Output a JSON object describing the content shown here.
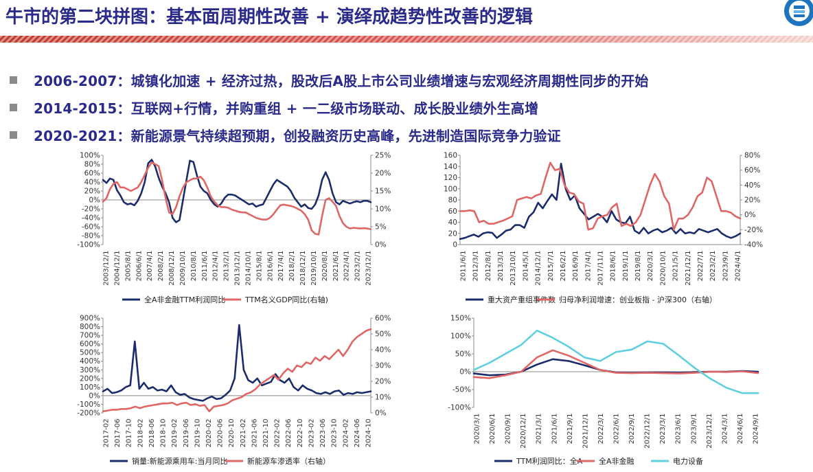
{
  "title": "牛市的第二块拼图：基本面周期性改善 + 演绎成趋势性改善的逻辑",
  "bullets": [
    "2006-2007：城镇化加速 + 经济过热，股改后A股上市公司业绩增速与宏观经济周期性同步的开始",
    "2014-2015：互联网+行情，并购重组 + 一二级市场联动、成长股业绩外生高增",
    "2020-2021：新能源景气持续超预期，创投融资历史高峰，先进制造国际竞争力验证"
  ],
  "colors": {
    "title": "#2a2a8a",
    "navy": "#1a2c6b",
    "red": "#e06666",
    "cyan": "#5fcfe0",
    "band": "#c0392b"
  },
  "chart_data": [
    {
      "type": "line",
      "x_ticks": [
        "2003/12/1",
        "2004/12/1",
        "2005/8/1",
        "2006/6/1",
        "2007/4/1",
        "2008/2/1",
        "2008/12/1",
        "2009/10/1",
        "2010/8/1",
        "2011/6/1",
        "2012/4/1",
        "2013/2/1",
        "2013/12/1",
        "2014/10/1",
        "2015/8/1",
        "2016/6/1",
        "2017/4/1",
        "2018/2/1",
        "2018/12/1",
        "2019/10/1",
        "2020/8/1",
        "2021/6/1",
        "2022/4/1",
        "2023/2/1",
        "2023/12/1"
      ],
      "y_left_ticks": [
        "100%",
        "80%",
        "60%",
        "40%",
        "20%",
        "0%",
        "-20%",
        "-40%",
        "-60%",
        "-80%",
        "-100%"
      ],
      "y_left_range": [
        -100,
        100
      ],
      "y_right_ticks": [
        "25%",
        "20%",
        "15%",
        "10%",
        "5%",
        "0%"
      ],
      "y_right_range": [
        0,
        25
      ],
      "series": [
        {
          "name": "全A非金融TTM利润同比",
          "axis": "left",
          "color": "#1a2c6b",
          "values": [
            45,
            38,
            48,
            45,
            22,
            10,
            -5,
            -10,
            -8,
            -12,
            -2,
            15,
            40,
            82,
            90,
            75,
            50,
            30,
            15,
            -5,
            -40,
            -50,
            -45,
            0,
            45,
            88,
            85,
            55,
            30,
            20,
            15,
            0,
            -10,
            -15,
            -8,
            5,
            12,
            12,
            10,
            5,
            0,
            -5,
            -10,
            -8,
            -15,
            -12,
            -10,
            5,
            20,
            35,
            45,
            40,
            35,
            30,
            20,
            5,
            -5,
            -15,
            -10,
            -18,
            -20,
            -10,
            10,
            45,
            62,
            45,
            15,
            -5,
            -10,
            -2,
            -5,
            -8,
            -5,
            -3,
            -5,
            -2,
            -2,
            -5
          ]
        },
        {
          "name": "TTM名义GDP同比(右轴)",
          "axis": "right",
          "color": "#e06666",
          "values": [
            12,
            13,
            15.5,
            17,
            17.5,
            16,
            16,
            15.5,
            15,
            15.5,
            16,
            17.5,
            19.5,
            21.5,
            23,
            22.5,
            22,
            18,
            13,
            9,
            8.5,
            10.5,
            13.5,
            16,
            17.5,
            18,
            18.5,
            18.5,
            19,
            18,
            16,
            13.5,
            12,
            11,
            10.5,
            10.5,
            10.3,
            9.8,
            9.5,
            9.2,
            9,
            9,
            8.5,
            8,
            7.5,
            7.2,
            7,
            7,
            7.5,
            8.5,
            9.8,
            11,
            11.2,
            11,
            10.8,
            10.5,
            10,
            9.5,
            8.5,
            7,
            4,
            3,
            2.8,
            8,
            12.5,
            13,
            12,
            10.8,
            8,
            6,
            5,
            4.5,
            4.7,
            4.6,
            4.5,
            4.6,
            4.5,
            4.3
          ]
        }
      ]
    },
    {
      "type": "line",
      "x_ticks": [
        "2011/6/1",
        "2012/3/1",
        "2012/8/1",
        "2013/3/1",
        "2013/10/1",
        "2014/5/1",
        "2014/12/1",
        "2015/7/1",
        "2016/2/1",
        "2016/9/1",
        "2017/4/1",
        "2017/11/1",
        "2018/6/1",
        "2019/1/1",
        "2019/8/1",
        "2020/3/1",
        "2020/10/1",
        "2021/5/1",
        "2021/12/1",
        "2022/7/1",
        "2023/2/1",
        "2023/9/1",
        "2024/4/1"
      ],
      "y_left_ticks": [
        "160",
        "140",
        "120",
        "100",
        "80",
        "60",
        "40",
        "20",
        "0"
      ],
      "y_left_range": [
        0,
        160
      ],
      "y_right_ticks": [
        "80%",
        "60%",
        "40%",
        "20%",
        "0%",
        "-20%",
        "-40%"
      ],
      "y_right_range": [
        -40,
        80
      ],
      "series": [
        {
          "name": "重大资产重组事件数",
          "axis": "left",
          "color": "#1a2c6b",
          "values": [
            10,
            12,
            15,
            18,
            14,
            20,
            22,
            21,
            12,
            18,
            25,
            27,
            35,
            35,
            30,
            50,
            58,
            75,
            65,
            78,
            90,
            80,
            145,
            100,
            80,
            88,
            65,
            55,
            45,
            50,
            55,
            50,
            40,
            60,
            45,
            40,
            38,
            50,
            25,
            20,
            30,
            20,
            25,
            28,
            22,
            25,
            30,
            20,
            28,
            20,
            22,
            20,
            28,
            25,
            22,
            25,
            28,
            20,
            15,
            12,
            15,
            20
          ]
        },
        {
          "name": "归母净利润增速：创业板指 - 沪深300（右轴）",
          "axis": "right",
          "color": "#e06666",
          "values": [
            5,
            5,
            6,
            5,
            -10,
            -8,
            -12,
            -12,
            -10,
            -8,
            -5,
            -2,
            20,
            22,
            24,
            22,
            26,
            28,
            50,
            70,
            60,
            62,
            40,
            30,
            28,
            18,
            15,
            -20,
            -18,
            -5,
            -2,
            0,
            10,
            15,
            -15,
            -12,
            -15,
            -10,
            0,
            20,
            40,
            55,
            45,
            25,
            15,
            -20,
            -5,
            -5,
            0,
            10,
            25,
            30,
            50,
            45,
            25,
            5,
            5,
            3,
            -2,
            -5
          ]
        }
      ]
    },
    {
      "type": "line",
      "x_ticks": [
        "2017-02",
        "2017-06",
        "2017-10",
        "2018-02",
        "2018-06",
        "2018-10",
        "2019-02",
        "2019-06",
        "2019-10",
        "2020-02",
        "2020-06",
        "2020-10",
        "2021-02",
        "2021-06",
        "2021-10",
        "2022-02",
        "2022-06",
        "2022-10",
        "2023-02",
        "2023-06",
        "2023-10",
        "2024-02",
        "2024-06",
        "2024-10"
      ],
      "y_left_ticks": [
        "900%",
        "800%",
        "700%",
        "600%",
        "500%",
        "400%",
        "300%",
        "200%",
        "100%",
        "0%",
        "-100%",
        "-200%"
      ],
      "y_left_range": [
        -200,
        900
      ],
      "y_right_ticks": [
        "60%",
        "50%",
        "40%",
        "30%",
        "20%",
        "10%",
        "0%"
      ],
      "y_right_range": [
        0,
        60
      ],
      "series": [
        {
          "name": "销量:新能源乘用车:当月同比",
          "axis": "left",
          "color": "#1a2c6b",
          "values": [
            50,
            80,
            30,
            40,
            60,
            100,
            120,
            630,
            80,
            150,
            80,
            100,
            60,
            70,
            50,
            120,
            40,
            10,
            20,
            -20,
            -40,
            -50,
            -60,
            -30,
            -10,
            -40,
            -30,
            10,
            60,
            200,
            820,
            300,
            180,
            150,
            200,
            120,
            140,
            160,
            250,
            180,
            150,
            200,
            100,
            60,
            120,
            80,
            60,
            30,
            20,
            40,
            20,
            50,
            60,
            10,
            30,
            20,
            40,
            30,
            40,
            50
          ]
        },
        {
          "name": "新能源车渗透率（右轴）",
          "axis": "right",
          "color": "#e06666",
          "values": [
            1,
            1.5,
            2,
            2,
            2.5,
            2.5,
            3,
            4,
            3,
            4,
            4.5,
            5,
            5.5,
            6,
            6,
            6.5,
            5,
            6,
            6.5,
            5,
            5.5,
            4.5,
            5,
            1,
            4,
            4.5,
            5,
            6,
            8,
            9,
            10,
            12,
            13,
            15,
            18,
            20,
            22,
            24,
            21,
            25,
            28,
            26,
            30,
            29,
            32,
            31,
            35,
            33,
            36,
            34,
            37,
            40,
            36,
            40,
            45,
            48,
            50,
            52,
            53
          ]
        }
      ]
    },
    {
      "type": "line",
      "x_ticks": [
        "2020/3/1",
        "2020/6/1",
        "2020/9/1",
        "2020/12/1",
        "2021/3/1",
        "2021/6/1",
        "2021/9/1",
        "2021/12/1",
        "2022/3/1",
        "2022/6/1",
        "2022/9/1",
        "2022/12/1",
        "2023/3/1",
        "2023/6/1",
        "2023/9/1",
        "2023/12/1",
        "2024/3/1",
        "2024/6/1",
        "2024/9/1"
      ],
      "y_left_ticks": [
        "150%",
        "100%",
        "50%",
        "0%",
        "-50%",
        "-100%"
      ],
      "y_left_range": [
        -100,
        150
      ],
      "series": [
        {
          "name": "TTM利润同比：全A",
          "color": "#1a2c6b",
          "values": [
            -5,
            -10,
            -8,
            0,
            20,
            35,
            30,
            18,
            5,
            -2,
            -3,
            -2,
            -2,
            -3,
            -1,
            0,
            0,
            2,
            0
          ]
        },
        {
          "name": "全A非金融",
          "color": "#e06666",
          "values": [
            -15,
            -18,
            -10,
            0,
            40,
            60,
            45,
            25,
            5,
            -3,
            -4,
            -3,
            -4,
            -5,
            -3,
            0,
            -1,
            1,
            -4
          ]
        },
        {
          "name": "电力设备",
          "color": "#5fcfe0",
          "values": [
            5,
            25,
            50,
            75,
            115,
            95,
            70,
            40,
            30,
            55,
            62,
            85,
            78,
            45,
            10,
            -20,
            -45,
            -60,
            -60
          ]
        }
      ]
    }
  ]
}
